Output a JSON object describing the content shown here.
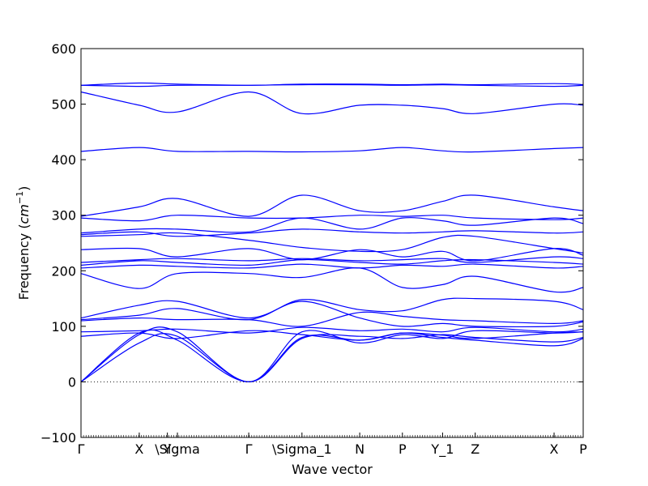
{
  "chart_data": {
    "type": "line",
    "title": "",
    "xlabel": "Wave vector",
    "ylabel": "Frequency (cm⁻¹)",
    "ylabel_parts": {
      "prefix": "Frequency (",
      "unit": "cm",
      "exponent": "−1",
      "suffix": ")"
    },
    "xlim": [
      0,
      100
    ],
    "ylim": [
      -100,
      600
    ],
    "yticks": [
      -100,
      0,
      100,
      200,
      300,
      400,
      500,
      600
    ],
    "grid": false,
    "legend": "none",
    "line_color": "#0000ff",
    "zero_line": {
      "y": 0,
      "style": "dotted",
      "color": "#000000"
    },
    "xticks": [
      {
        "label": "Γ",
        "x": 0
      },
      {
        "label": "X",
        "x": 11.6
      },
      {
        "label": "Y",
        "x": 17.2
      },
      {
        "label": "\\Sigma",
        "x": 19.2
      },
      {
        "label": "Γ",
        "x": 33.4
      },
      {
        "label": "\\Sigma_1",
        "x": 44.0
      },
      {
        "label": "N",
        "x": 55.5
      },
      {
        "label": "P",
        "x": 64.0
      },
      {
        "label": "Y_1",
        "x": 72.0
      },
      {
        "label": "Z",
        "x": 78.5
      },
      {
        "label": "X",
        "x": 94.2
      },
      {
        "label": "P",
        "x": 100
      }
    ],
    "series": [
      {
        "x": [
          0,
          11.6,
          19.2,
          33.4,
          44.0,
          55.5,
          64.0,
          72.0,
          78.5,
          94.2,
          100
        ],
        "y": [
          0,
          88,
          75,
          0,
          80,
          75,
          88,
          80,
          75,
          65,
          78
        ]
      },
      {
        "x": [
          0,
          11.6,
          19.2,
          33.4,
          44.0,
          55.5,
          64.0,
          72.0,
          78.5,
          94.2,
          100
        ],
        "y": [
          0,
          70,
          82,
          0,
          78,
          82,
          78,
          85,
          80,
          72,
          80
        ]
      },
      {
        "x": [
          0,
          11.6,
          19.2,
          33.4,
          44.0,
          55.5,
          64.0,
          72.0,
          78.5,
          94.2,
          100
        ],
        "y": [
          0,
          85,
          90,
          0,
          90,
          70,
          85,
          78,
          92,
          88,
          90
        ]
      },
      {
        "x": [
          0,
          11.6,
          19.2,
          33.4,
          44.0,
          55.5,
          64.0,
          72.0,
          78.5,
          94.2,
          100
        ],
        "y": [
          82,
          88,
          78,
          92,
          85,
          75,
          88,
          84,
          78,
          88,
          90
        ]
      },
      {
        "x": [
          0,
          11.6,
          19.2,
          33.4,
          44.0,
          55.5,
          64.0,
          72.0,
          78.5,
          94.2,
          100
        ],
        "y": [
          90,
          92,
          95,
          88,
          98,
          92,
          95,
          90,
          98,
          90,
          95
        ]
      },
      {
        "x": [
          0,
          11.6,
          19.2,
          33.4,
          44.0,
          55.5,
          64.0,
          72.0,
          78.5,
          94.2,
          100
        ],
        "y": [
          110,
          115,
          112,
          112,
          100,
          125,
          118,
          112,
          110,
          105,
          110
        ]
      },
      {
        "x": [
          0,
          11.6,
          19.2,
          33.4,
          44.0,
          55.5,
          64.0,
          72.0,
          78.5,
          94.2,
          100
        ],
        "y": [
          112,
          120,
          132,
          112,
          148,
          130,
          128,
          148,
          150,
          145,
          130
        ]
      },
      {
        "x": [
          0,
          11.6,
          19.2,
          33.4,
          44.0,
          55.5,
          64.0,
          72.0,
          78.5,
          94.2,
          100
        ],
        "y": [
          115,
          138,
          145,
          115,
          145,
          115,
          100,
          105,
          100,
          100,
          108
        ]
      },
      {
        "x": [
          0,
          11.6,
          19.2,
          33.4,
          44.0,
          55.5,
          64.0,
          72.0,
          78.5,
          94.2,
          100
        ],
        "y": [
          195,
          168,
          195,
          195,
          188,
          205,
          170,
          175,
          190,
          162,
          170
        ]
      },
      {
        "x": [
          0,
          11.6,
          19.2,
          33.4,
          44.0,
          55.5,
          64.0,
          72.0,
          78.5,
          94.2,
          100
        ],
        "y": [
          205,
          210,
          208,
          205,
          212,
          205,
          210,
          208,
          212,
          205,
          208
        ]
      },
      {
        "x": [
          0,
          11.6,
          19.2,
          33.4,
          44.0,
          55.5,
          64.0,
          72.0,
          78.5,
          94.2,
          100
        ],
        "y": [
          210,
          218,
          215,
          210,
          220,
          215,
          212,
          218,
          220,
          215,
          212
        ]
      },
      {
        "x": [
          0,
          11.6,
          19.2,
          33.4,
          44.0,
          55.5,
          64.0,
          72.0,
          78.5,
          94.2,
          100
        ],
        "y": [
          215,
          220,
          222,
          218,
          222,
          218,
          220,
          222,
          215,
          225,
          222
        ]
      },
      {
        "x": [
          0,
          11.6,
          19.2,
          33.4,
          44.0,
          55.5,
          64.0,
          72.0,
          78.5,
          94.2,
          100
        ],
        "y": [
          238,
          240,
          225,
          240,
          220,
          238,
          225,
          235,
          218,
          240,
          228
        ]
      },
      {
        "x": [
          0,
          11.6,
          19.2,
          33.4,
          44.0,
          55.5,
          64.0,
          72.0,
          78.5,
          94.2,
          100
        ],
        "y": [
          262,
          265,
          268,
          255,
          242,
          235,
          238,
          260,
          262,
          240,
          232
        ]
      },
      {
        "x": [
          0,
          11.6,
          19.2,
          33.4,
          44.0,
          55.5,
          64.0,
          72.0,
          78.5,
          94.2,
          100
        ],
        "y": [
          265,
          270,
          262,
          268,
          275,
          270,
          268,
          270,
          272,
          268,
          270
        ]
      },
      {
        "x": [
          0,
          11.6,
          19.2,
          33.4,
          44.0,
          55.5,
          64.0,
          72.0,
          78.5,
          94.2,
          100
        ],
        "y": [
          268,
          275,
          275,
          270,
          295,
          275,
          295,
          290,
          282,
          295,
          285
        ]
      },
      {
        "x": [
          0,
          11.6,
          19.2,
          33.4,
          44.0,
          55.5,
          64.0,
          72.0,
          78.5,
          94.2,
          100
        ],
        "y": [
          295,
          290,
          300,
          295,
          295,
          300,
          298,
          300,
          295,
          292,
          295
        ]
      },
      {
        "x": [
          0,
          11.6,
          19.2,
          33.4,
          44.0,
          55.5,
          64.0,
          72.0,
          78.5,
          94.2,
          100
        ],
        "y": [
          298,
          315,
          330,
          298,
          336,
          308,
          308,
          325,
          336,
          315,
          308
        ]
      },
      {
        "x": [
          0,
          11.6,
          19.2,
          33.4,
          44.0,
          55.5,
          64.0,
          72.0,
          78.5,
          94.2,
          100
        ],
        "y": [
          415,
          422,
          415,
          415,
          414,
          416,
          422,
          416,
          414,
          420,
          422
        ]
      },
      {
        "x": [
          0,
          11.6,
          19.2,
          33.4,
          44.0,
          55.5,
          64.0,
          72.0,
          78.5,
          94.2,
          100
        ],
        "y": [
          522,
          498,
          486,
          522,
          483,
          498,
          498,
          492,
          483,
          500,
          498
        ]
      },
      {
        "x": [
          0,
          11.6,
          19.2,
          33.4,
          44.0,
          55.5,
          64.0,
          72.0,
          78.5,
          94.2,
          100
        ],
        "y": [
          534,
          532,
          534,
          534,
          535,
          535,
          534,
          535,
          534,
          532,
          534
        ]
      },
      {
        "x": [
          0,
          11.6,
          19.2,
          33.4,
          44.0,
          55.5,
          64.0,
          72.0,
          78.5,
          94.2,
          100
        ],
        "y": [
          534,
          538,
          536,
          534,
          536,
          536,
          535,
          536,
          535,
          537,
          535
        ]
      }
    ]
  }
}
